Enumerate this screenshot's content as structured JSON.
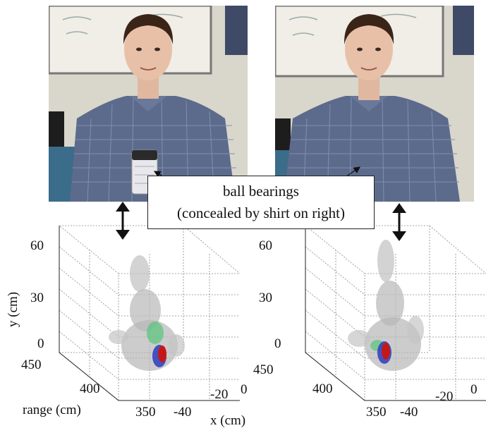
{
  "callout": {
    "line1": "ball bearings",
    "line2": "(concealed by shirt on right)"
  },
  "plots": {
    "y_ticks": [
      "60",
      "30",
      "0"
    ],
    "range_ticks": [
      "450",
      "400",
      "350"
    ],
    "x_ticks": [
      "-40",
      "-20",
      "0"
    ],
    "ylabel": "y (cm)",
    "range_label": "range (cm)",
    "xlabel": "x (cm)"
  },
  "icons": {
    "arrow": "double-headed-vertical-arrow"
  },
  "colors": {
    "cloud_gray": "#b8b8b8",
    "hot_red": "#c41818",
    "hot_blue": "#2a3cc0",
    "hot_green": "#58c47c",
    "shirt": "#5c6a8c",
    "wall": "#dcd8cc"
  }
}
